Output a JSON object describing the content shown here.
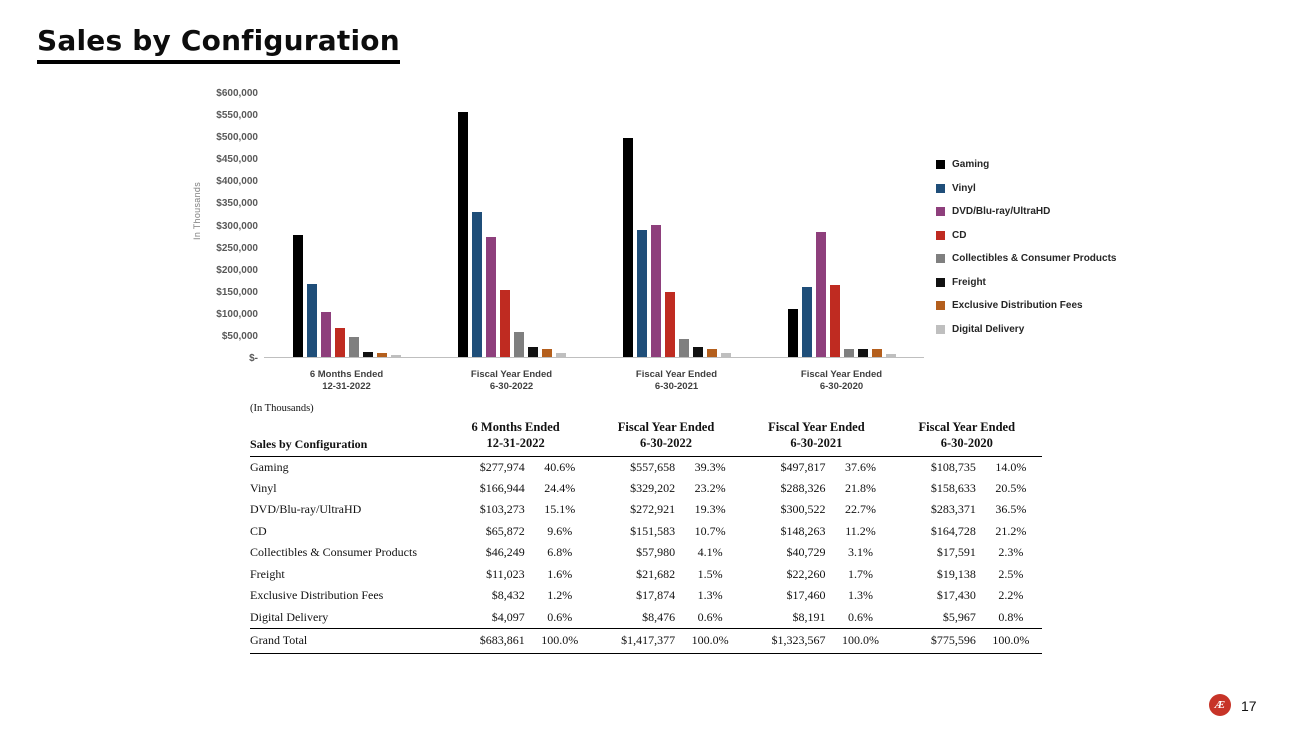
{
  "slide": {
    "title": "Sales by Configuration"
  },
  "chart_data": {
    "type": "bar",
    "title": "",
    "ylabel": "In Thousands",
    "ylim": [
      0,
      600000
    ],
    "ytick_step": 50000,
    "ytick_labels": [
      "$-",
      "$50,000",
      "$100,000",
      "$150,000",
      "$200,000",
      "$250,000",
      "$300,000",
      "$350,000",
      "$400,000",
      "$450,000",
      "$500,000",
      "$550,000",
      "$600,000"
    ],
    "categories": [
      [
        "6 Months Ended",
        "12-31-2022"
      ],
      [
        "Fiscal Year Ended",
        "6-30-2022"
      ],
      [
        "Fiscal Year Ended",
        "6-30-2021"
      ],
      [
        "Fiscal Year Ended",
        "6-30-2020"
      ]
    ],
    "series": [
      {
        "name": "Gaming",
        "color": "#000000",
        "values": [
          277974,
          557658,
          497817,
          108735
        ]
      },
      {
        "name": "Vinyl",
        "color": "#1f4e79",
        "values": [
          166944,
          329202,
          288326,
          158633
        ]
      },
      {
        "name": "DVD/Blu-ray/UltraHD",
        "color": "#8e3f7c",
        "values": [
          103273,
          272921,
          300522,
          283371
        ]
      },
      {
        "name": "CD",
        "color": "#bf2b21",
        "values": [
          65872,
          151583,
          148263,
          164728
        ]
      },
      {
        "name": "Collectibles & Consumer Products",
        "color": "#7f7f7f",
        "values": [
          46249,
          57980,
          40729,
          17591
        ]
      },
      {
        "name": "Freight",
        "color": "#111111",
        "values": [
          11023,
          21682,
          22260,
          19138
        ]
      },
      {
        "name": "Exclusive Distribution Fees",
        "color": "#b45f1d",
        "values": [
          8432,
          17874,
          17460,
          17430
        ]
      },
      {
        "name": "Digital Delivery",
        "color": "#bfbfbf",
        "values": [
          4097,
          8476,
          8191,
          5967
        ]
      }
    ],
    "legend_position": "right",
    "grid": false
  },
  "table": {
    "note": "(In Thousands)",
    "row_header": "Sales by Configuration",
    "col_headers": [
      [
        "6 Months Ended",
        "12-31-2022"
      ],
      [
        "Fiscal Year Ended",
        "6-30-2022"
      ],
      [
        "Fiscal Year Ended",
        "6-30-2021"
      ],
      [
        "Fiscal Year Ended",
        "6-30-2020"
      ]
    ],
    "rows": [
      {
        "label": "Gaming",
        "cells": [
          [
            "$277,974",
            "40.6%"
          ],
          [
            "$557,658",
            "39.3%"
          ],
          [
            "$497,817",
            "37.6%"
          ],
          [
            "$108,735",
            "14.0%"
          ]
        ]
      },
      {
        "label": "Vinyl",
        "cells": [
          [
            "$166,944",
            "24.4%"
          ],
          [
            "$329,202",
            "23.2%"
          ],
          [
            "$288,326",
            "21.8%"
          ],
          [
            "$158,633",
            "20.5%"
          ]
        ]
      },
      {
        "label": "DVD/Blu-ray/UltraHD",
        "cells": [
          [
            "$103,273",
            "15.1%"
          ],
          [
            "$272,921",
            "19.3%"
          ],
          [
            "$300,522",
            "22.7%"
          ],
          [
            "$283,371",
            "36.5%"
          ]
        ]
      },
      {
        "label": "CD",
        "cells": [
          [
            "$65,872",
            "9.6%"
          ],
          [
            "$151,583",
            "10.7%"
          ],
          [
            "$148,263",
            "11.2%"
          ],
          [
            "$164,728",
            "21.2%"
          ]
        ]
      },
      {
        "label": "Collectibles & Consumer Products",
        "cells": [
          [
            "$46,249",
            "6.8%"
          ],
          [
            "$57,980",
            "4.1%"
          ],
          [
            "$40,729",
            "3.1%"
          ],
          [
            "$17,591",
            "2.3%"
          ]
        ]
      },
      {
        "label": "Freight",
        "cells": [
          [
            "$11,023",
            "1.6%"
          ],
          [
            "$21,682",
            "1.5%"
          ],
          [
            "$22,260",
            "1.7%"
          ],
          [
            "$19,138",
            "2.5%"
          ]
        ]
      },
      {
        "label": "Exclusive Distribution Fees",
        "cells": [
          [
            "$8,432",
            "1.2%"
          ],
          [
            "$17,874",
            "1.3%"
          ],
          [
            "$17,460",
            "1.3%"
          ],
          [
            "$17,430",
            "2.2%"
          ]
        ]
      },
      {
        "label": "Digital Delivery",
        "cells": [
          [
            "$4,097",
            "0.6%"
          ],
          [
            "$8,476",
            "0.6%"
          ],
          [
            "$8,191",
            "0.6%"
          ],
          [
            "$5,967",
            "0.8%"
          ]
        ]
      }
    ],
    "grand_total": {
      "label": "Grand Total",
      "cells": [
        [
          "$683,861",
          "100.0%"
        ],
        [
          "$1,417,377",
          "100.0%"
        ],
        [
          "$1,323,567",
          "100.0%"
        ],
        [
          "$775,596",
          "100.0%"
        ]
      ]
    }
  },
  "footer": {
    "page_number": "17",
    "logo_glyph": "Æ"
  }
}
